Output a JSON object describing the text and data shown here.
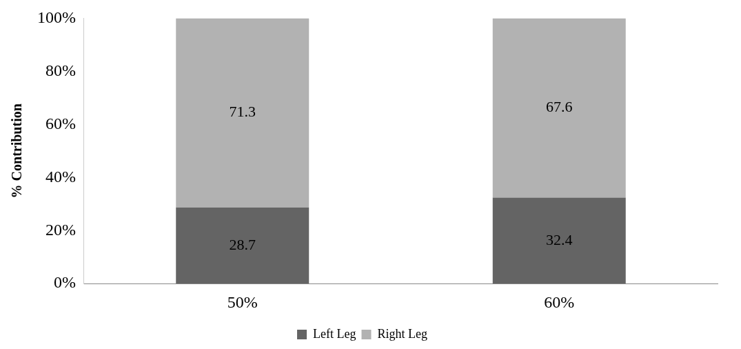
{
  "chart_data": {
    "type": "bar",
    "stacked": true,
    "ylabel": "% Contribution",
    "categories": [
      "50%",
      "60%"
    ],
    "series": [
      {
        "name": "Left Leg",
        "color": "#646464",
        "values": [
          28.7,
          32.4
        ]
      },
      {
        "name": "Right Leg",
        "color": "#b2b2b2",
        "values": [
          71.3,
          67.6
        ]
      }
    ],
    "ylim": [
      0,
      100
    ],
    "yticks": [
      {
        "value": 0,
        "label": "0%"
      },
      {
        "value": 20,
        "label": "20%"
      },
      {
        "value": 40,
        "label": "40%"
      },
      {
        "value": 60,
        "label": "60%"
      },
      {
        "value": 80,
        "label": "80%"
      },
      {
        "value": 100,
        "label": "100%"
      }
    ],
    "data_labels": true,
    "grid": false,
    "legend": "bottom"
  }
}
